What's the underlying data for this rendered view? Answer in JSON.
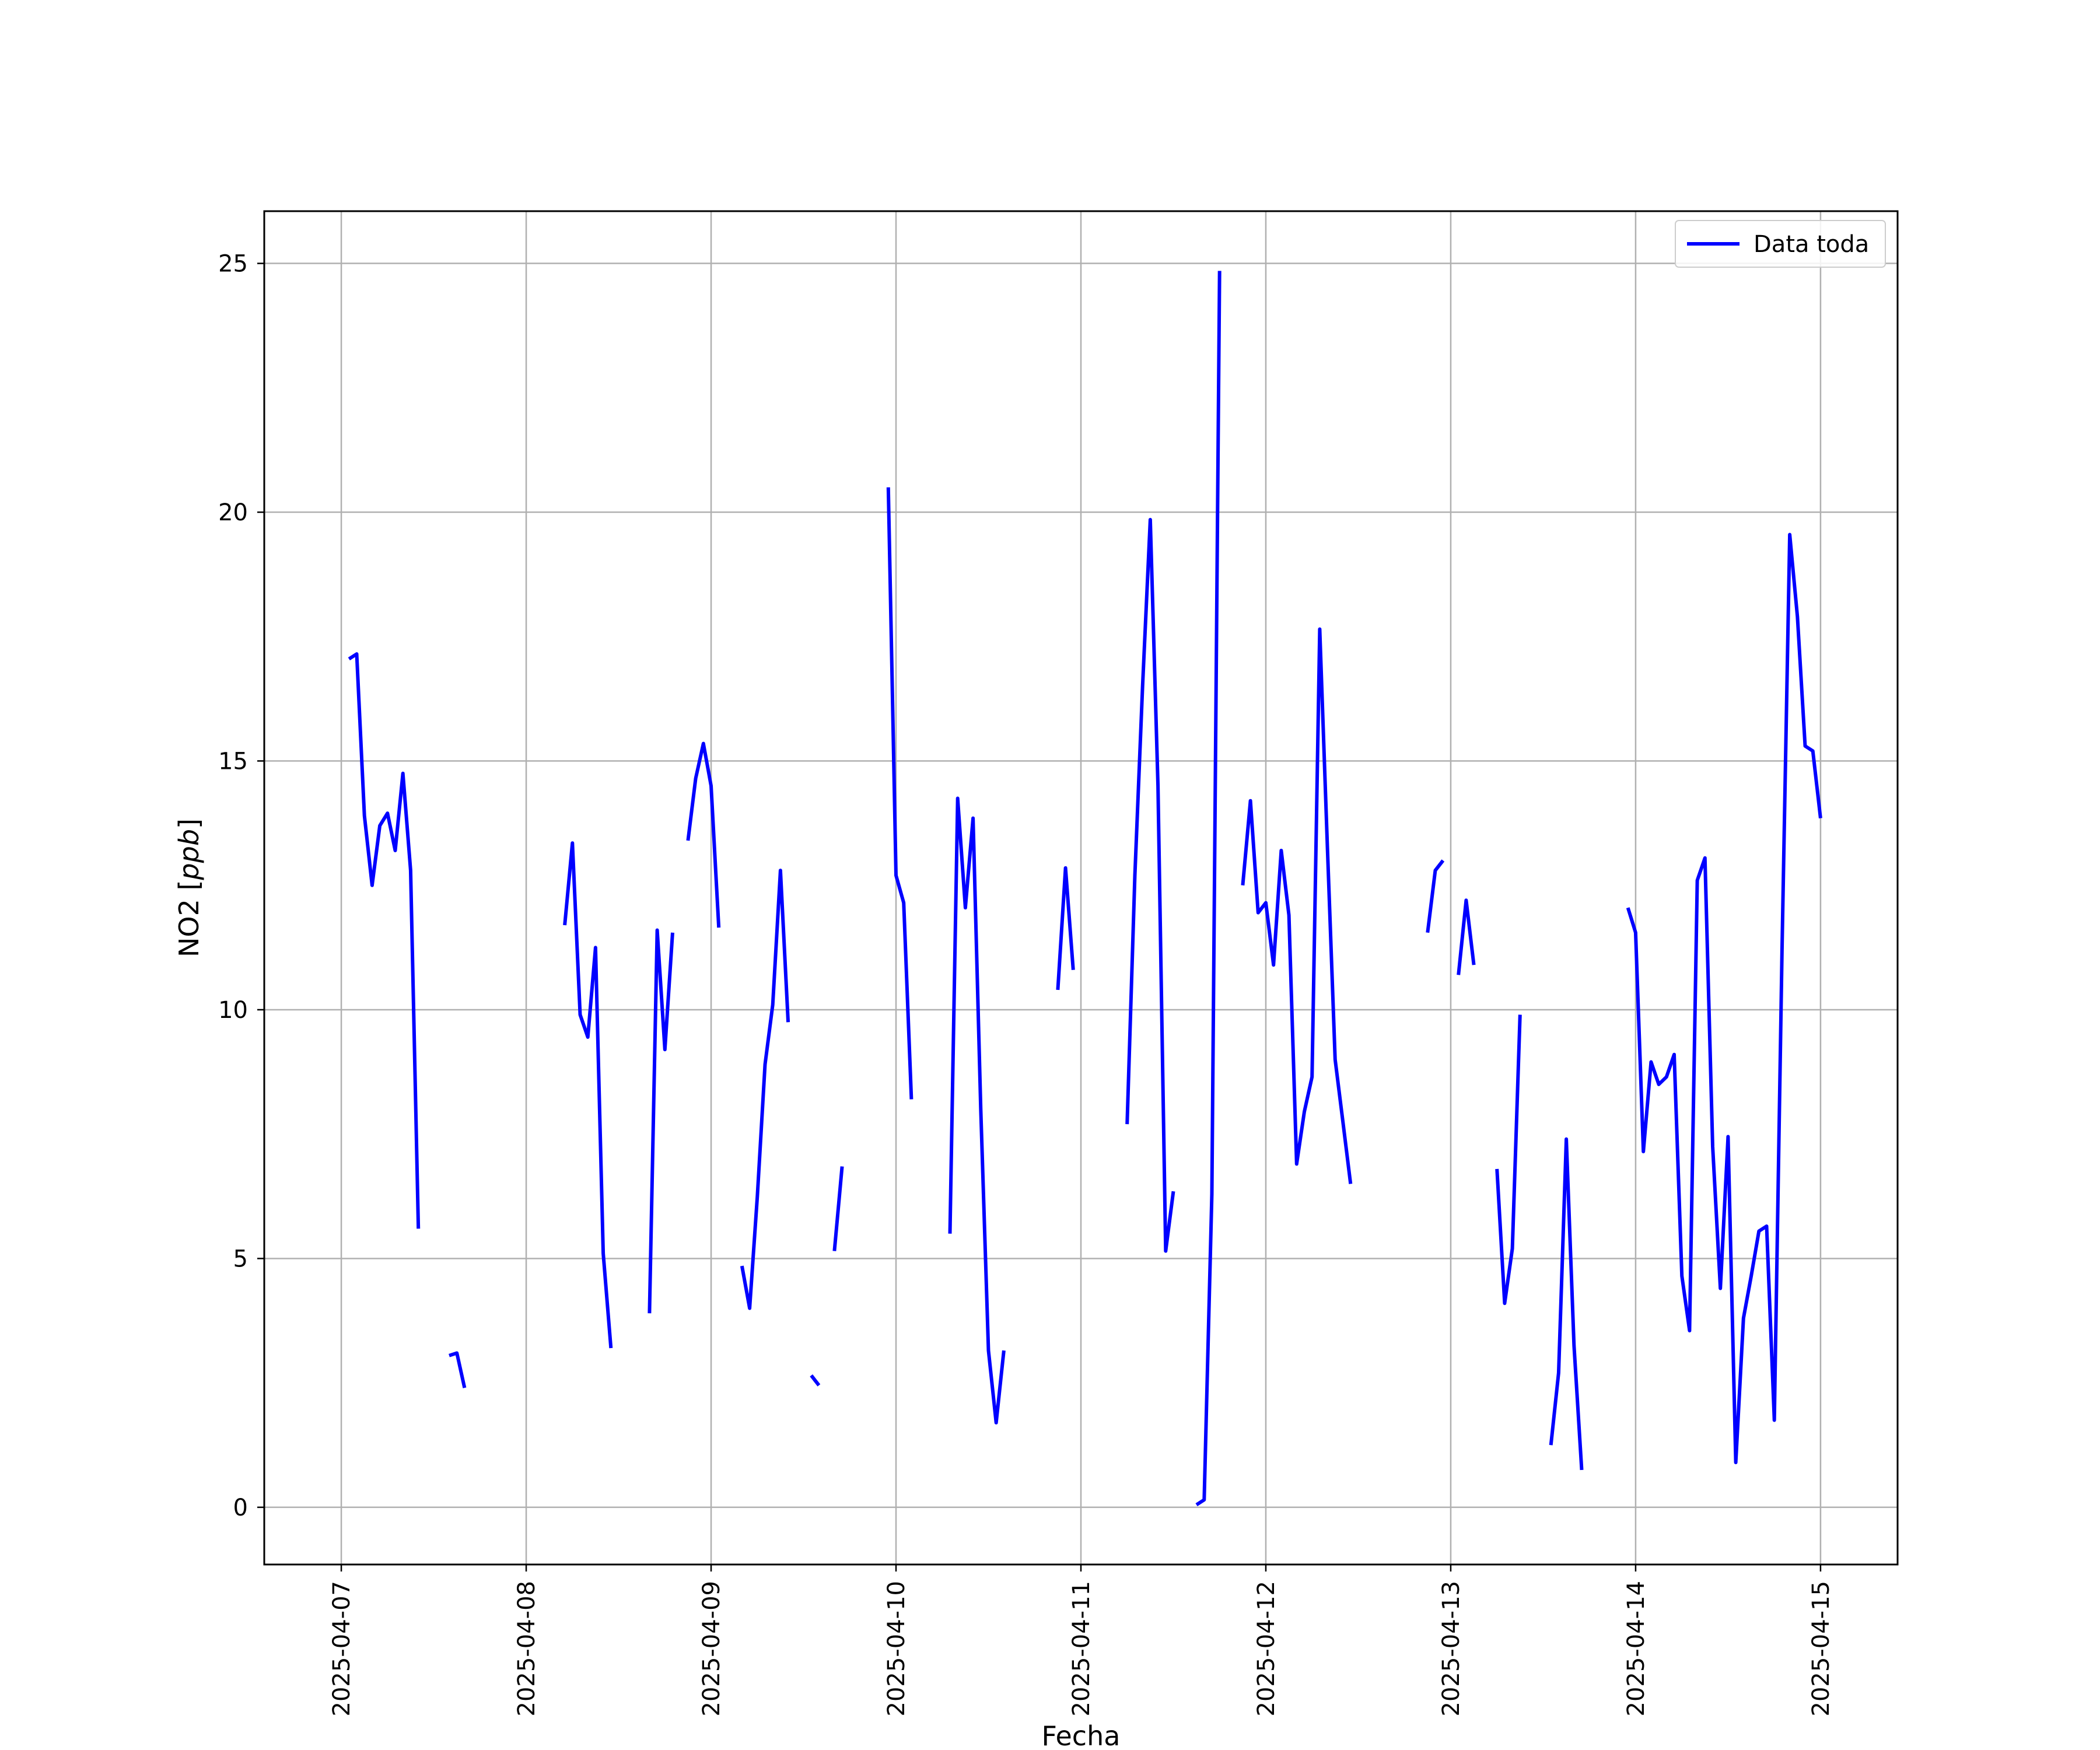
{
  "chart_data": {
    "type": "line",
    "xlabel": "Fecha",
    "ylabel_text": "NO2 [",
    "ylabel_unit": "ppb",
    "ylabel_close": "]",
    "x_ticks": [
      "2025-04-07",
      "2025-04-08",
      "2025-04-09",
      "2025-04-10",
      "2025-04-11",
      "2025-04-12",
      "2025-04-13",
      "2025-04-14",
      "2025-04-15"
    ],
    "y_ticks": [
      "0",
      "5",
      "10",
      "15",
      "20",
      "25"
    ],
    "ylim": [
      -1.15,
      26.05
    ],
    "xlim": [
      "2025-04-06 14:00",
      "2025-04-15 10:00"
    ],
    "grid": true,
    "legend_position": "top-right",
    "colors": {
      "series": "#0000ff",
      "grid": "#b0b0b0",
      "axes": "#000000"
    },
    "series": [
      {
        "name": "Data toda",
        "segments": [
          [
            [
              "2025-04-07 01:00",
              17.05
            ],
            [
              "2025-04-07 02:00",
              17.15
            ],
            [
              "2025-04-07 03:00",
              13.9
            ],
            [
              "2025-04-07 04:00",
              12.5
            ],
            [
              "2025-04-07 05:00",
              13.7
            ],
            [
              "2025-04-07 06:00",
              13.95
            ],
            [
              "2025-04-07 07:00",
              13.2
            ],
            [
              "2025-04-07 08:00",
              14.75
            ],
            [
              "2025-04-07 09:00",
              12.8
            ],
            [
              "2025-04-07 10:00",
              5.6
            ]
          ],
          [
            [
              "2025-04-07 14:00",
              3.05
            ],
            [
              "2025-04-07 15:00",
              3.1
            ],
            [
              "2025-04-07 16:00",
              2.4
            ]
          ],
          [
            [
              "2025-04-08 05:00",
              11.7
            ],
            [
              "2025-04-08 06:00",
              13.35
            ],
            [
              "2025-04-08 07:00",
              9.9
            ],
            [
              "2025-04-08 08:00",
              9.45
            ],
            [
              "2025-04-08 09:00",
              11.25
            ],
            [
              "2025-04-08 10:00",
              5.1
            ],
            [
              "2025-04-08 11:00",
              3.2
            ]
          ],
          [
            [
              "2025-04-08 16:00",
              3.9
            ],
            [
              "2025-04-08 17:00",
              11.6
            ],
            [
              "2025-04-08 18:00",
              9.2
            ],
            [
              "2025-04-08 19:00",
              11.55
            ]
          ],
          [
            [
              "2025-04-08 21:00",
              13.4
            ],
            [
              "2025-04-08 22:00",
              14.65
            ],
            [
              "2025-04-08 23:00",
              15.35
            ],
            [
              "2025-04-09 00:00",
              14.5
            ],
            [
              "2025-04-09 01:00",
              11.65
            ]
          ],
          [
            [
              "2025-04-09 04:00",
              4.85
            ],
            [
              "2025-04-09 05:00",
              4.0
            ],
            [
              "2025-04-09 06:00",
              6.25
            ],
            [
              "2025-04-09 07:00",
              8.9
            ],
            [
              "2025-04-09 08:00",
              10.1
            ],
            [
              "2025-04-09 09:00",
              12.8
            ],
            [
              "2025-04-09 10:00",
              9.75
            ]
          ],
          [
            [
              "2025-04-09 13:00",
              2.65
            ],
            [
              "2025-04-09 14:00",
              2.45
            ]
          ],
          [
            [
              "2025-04-09 16:00",
              5.15
            ],
            [
              "2025-04-09 17:00",
              6.85
            ]
          ],
          [
            [
              "2025-04-09 23:00",
              20.5
            ],
            [
              "2025-04-10 00:00",
              12.7
            ],
            [
              "2025-04-10 01:00",
              12.15
            ],
            [
              "2025-04-10 02:00",
              8.2
            ]
          ],
          [
            [
              "2025-04-10 07:00",
              5.5
            ],
            [
              "2025-04-10 08:00",
              14.25
            ],
            [
              "2025-04-10 09:00",
              12.05
            ],
            [
              "2025-04-10 10:00",
              13.85
            ],
            [
              "2025-04-10 11:00",
              8.0
            ],
            [
              "2025-04-10 12:00",
              3.15
            ],
            [
              "2025-04-10 13:00",
              1.7
            ],
            [
              "2025-04-10 14:00",
              3.15
            ]
          ],
          [
            [
              "2025-04-10 21:00",
              10.4
            ],
            [
              "2025-04-10 22:00",
              12.85
            ],
            [
              "2025-04-10 23:00",
              10.8
            ]
          ],
          [
            [
              "2025-04-11 06:00",
              7.7
            ],
            [
              "2025-04-11 07:00",
              12.7
            ],
            [
              "2025-04-11 08:00",
              16.5
            ],
            [
              "2025-04-11 09:00",
              19.85
            ],
            [
              "2025-04-11 10:00",
              14.5
            ],
            [
              "2025-04-11 11:00",
              5.15
            ],
            [
              "2025-04-11 12:00",
              6.35
            ]
          ],
          [
            [
              "2025-04-11 15:00",
              0.05
            ],
            [
              "2025-04-11 16:00",
              0.15
            ],
            [
              "2025-04-11 17:00",
              6.3
            ],
            [
              "2025-04-11 18:00",
              24.85
            ]
          ],
          [
            [
              "2025-04-11 21:00",
              12.5
            ],
            [
              "2025-04-11 22:00",
              14.2
            ],
            [
              "2025-04-11 23:00",
              11.95
            ],
            [
              "2025-04-12 00:00",
              12.15
            ],
            [
              "2025-04-12 01:00",
              10.9
            ],
            [
              "2025-04-12 02:00",
              13.2
            ],
            [
              "2025-04-12 03:00",
              11.9
            ],
            [
              "2025-04-12 04:00",
              6.9
            ],
            [
              "2025-04-12 05:00",
              7.95
            ],
            [
              "2025-04-12 06:00",
              8.65
            ],
            [
              "2025-04-12 07:00",
              17.65
            ],
            [
              "2025-04-12 08:00",
              13.25
            ],
            [
              "2025-04-12 09:00",
              9.0
            ],
            [
              "2025-04-12 10:00",
              7.75
            ],
            [
              "2025-04-12 11:00",
              6.5
            ]
          ],
          [
            [
              "2025-04-12 21:00",
              11.55
            ],
            [
              "2025-04-12 22:00",
              12.8
            ],
            [
              "2025-04-12 23:00",
              13.0
            ]
          ],
          [
            [
              "2025-04-13 01:00",
              10.7
            ],
            [
              "2025-04-13 02:00",
              12.2
            ],
            [
              "2025-04-13 03:00",
              10.9
            ]
          ],
          [
            [
              "2025-04-13 06:00",
              6.8
            ],
            [
              "2025-04-13 07:00",
              4.1
            ],
            [
              "2025-04-13 08:00",
              5.2
            ],
            [
              "2025-04-13 09:00",
              9.9
            ]
          ],
          [
            [
              "2025-04-13 13:00",
              1.25
            ],
            [
              "2025-04-13 14:00",
              2.7
            ],
            [
              "2025-04-13 15:00",
              7.4
            ],
            [
              "2025-04-13 16:00",
              3.25
            ],
            [
              "2025-04-13 17:00",
              0.75
            ]
          ],
          [
            [
              "2025-04-13 23:00",
              12.05
            ],
            [
              "2025-04-14 00:00",
              11.55
            ],
            [
              "2025-04-14 01:00",
              7.15
            ],
            [
              "2025-04-14 02:00",
              8.95
            ],
            [
              "2025-04-14 03:00",
              8.5
            ],
            [
              "2025-04-14 04:00",
              8.65
            ],
            [
              "2025-04-14 05:00",
              9.1
            ],
            [
              "2025-04-14 06:00",
              4.65
            ],
            [
              "2025-04-14 07:00",
              3.55
            ],
            [
              "2025-04-14 08:00",
              12.6
            ],
            [
              "2025-04-14 09:00",
              13.05
            ],
            [
              "2025-04-14 10:00",
              7.25
            ],
            [
              "2025-04-14 11:00",
              4.4
            ],
            [
              "2025-04-14 12:00",
              7.45
            ],
            [
              "2025-04-14 13:00",
              0.9
            ],
            [
              "2025-04-14 14:00",
              3.8
            ],
            [
              "2025-04-14 15:00",
              4.65
            ],
            [
              "2025-04-14 16:00",
              5.55
            ],
            [
              "2025-04-14 17:00",
              5.65
            ],
            [
              "2025-04-14 18:00",
              1.75
            ],
            [
              "2025-04-14 19:00",
              11.2
            ],
            [
              "2025-04-14 20:00",
              19.55
            ],
            [
              "2025-04-14 21:00",
              17.9
            ],
            [
              "2025-04-14 22:00",
              15.3
            ],
            [
              "2025-04-14 23:00",
              15.2
            ],
            [
              "2025-04-15 00:00",
              13.85
            ]
          ]
        ]
      }
    ]
  }
}
